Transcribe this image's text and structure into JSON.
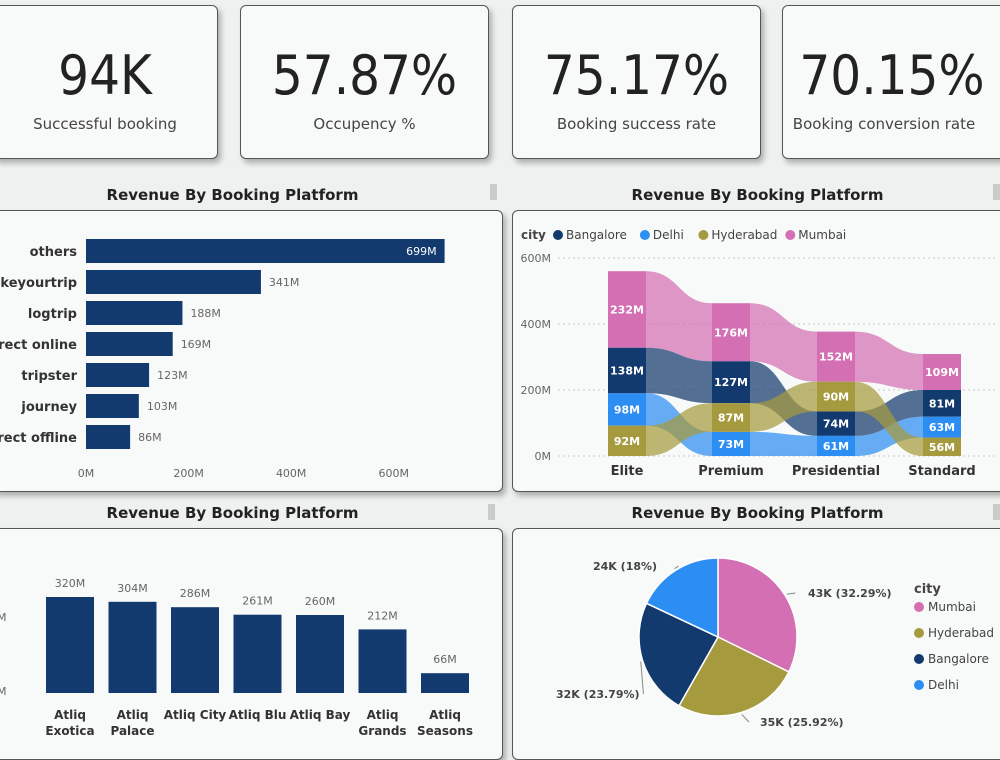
{
  "kpis": [
    {
      "value": "94K",
      "label": "Successful booking"
    },
    {
      "value": "57.87%",
      "label": "Occupency %"
    },
    {
      "value": "75.17%",
      "label": "Booking success rate"
    },
    {
      "value": "70.15%",
      "label": "Booking conversion rate"
    }
  ],
  "titles": {
    "top_left": "Revenue By Booking Platform",
    "top_right": "Revenue By Booking Platform",
    "bottom_left": "Revenue By Booking Platform",
    "bottom_right": "Revenue By Booking Platform"
  },
  "colors": {
    "navy": "#133a6e",
    "mumbai": "#d36fb2",
    "hyderabad": "#a69a3f",
    "bangalore": "#133a6e",
    "delhi": "#2c8ef2"
  },
  "chart_data": [
    {
      "id": "platform",
      "type": "bar",
      "orientation": "horizontal",
      "title": "Revenue By Booking Platform",
      "categories": [
        "others",
        "makeyourtrip",
        "logtrip",
        "direct online",
        "tripster",
        "journey",
        "direct offline"
      ],
      "visible_category_labels": [
        "others",
        "keyourtrip",
        "logtrip",
        "rect online",
        "tripster",
        "journey",
        "rect offline"
      ],
      "values": [
        699,
        341,
        188,
        169,
        123,
        103,
        86
      ],
      "value_labels": [
        "699M",
        "341M",
        "188M",
        "169M",
        "123M",
        "103M",
        "86M"
      ],
      "xlim": [
        0,
        700
      ],
      "ticks": [
        0,
        200,
        400,
        600
      ],
      "tick_labels": [
        "0M",
        "200M",
        "400M",
        "600M"
      ]
    },
    {
      "id": "room_class",
      "type": "area",
      "subtype": "ribbon-stacked",
      "title": "Revenue By Booking Platform",
      "legend_title": "city",
      "legend": [
        "Bangalore",
        "Delhi",
        "Hyderabad",
        "Mumbai"
      ],
      "categories": [
        "Elite",
        "Premium",
        "Presidential",
        "Standard"
      ],
      "series": [
        {
          "name": "Mumbai",
          "values": [
            232,
            176,
            152,
            109
          ],
          "labels": [
            "232M",
            "176M",
            "152M",
            "109M"
          ]
        },
        {
          "name": "Bangalore",
          "values": [
            138,
            127,
            74,
            81
          ],
          "labels": [
            "138M",
            "127M",
            "74M",
            "81M"
          ]
        },
        {
          "name": "Delhi",
          "values": [
            98,
            73,
            61,
            63
          ],
          "labels": [
            "98M",
            "73M",
            "61M",
            "63M"
          ]
        },
        {
          "name": "Hyderabad",
          "values": [
            92,
            87,
            90,
            56
          ],
          "labels": [
            "92M",
            "87M",
            "90M",
            "56M"
          ]
        }
      ],
      "ylim": [
        0,
        600
      ],
      "ticks": [
        0,
        200,
        400,
        600
      ],
      "tick_labels": [
        "0M",
        "200M",
        "400M",
        "600M"
      ]
    },
    {
      "id": "property",
      "type": "bar",
      "orientation": "vertical",
      "title": "Revenue By Booking Platform",
      "categories": [
        [
          "Atliq",
          "Exotica"
        ],
        [
          "Atliq",
          "Palace"
        ],
        [
          "Atliq City"
        ],
        [
          "Atliq Blu"
        ],
        [
          "Atliq Bay"
        ],
        [
          "Atliq",
          "Grands"
        ],
        [
          "Atliq",
          "Seasons"
        ]
      ],
      "values": [
        320,
        304,
        286,
        261,
        260,
        212,
        66
      ],
      "value_labels": [
        "320M",
        "304M",
        "286M",
        "261M",
        "260M",
        "212M",
        "66M"
      ],
      "ylim": [
        0,
        320
      ],
      "partial_ticks": [
        "M",
        "M"
      ]
    },
    {
      "id": "city_share",
      "type": "pie",
      "title": "Revenue By Booking Platform",
      "legend_title": "city",
      "legend": [
        "Mumbai",
        "Hyderabad",
        "Bangalore",
        "Delhi"
      ],
      "slices": [
        {
          "name": "Mumbai",
          "value": 43,
          "pct": 32.29,
          "label": "43K (32.29%)"
        },
        {
          "name": "Hyderabad",
          "value": 35,
          "pct": 25.92,
          "label": "35K (25.92%)"
        },
        {
          "name": "Bangalore",
          "value": 32,
          "pct": 23.79,
          "label": "32K (23.79%)"
        },
        {
          "name": "Delhi",
          "value": 24,
          "pct": 18.0,
          "label": "24K (18%)"
        }
      ]
    }
  ]
}
